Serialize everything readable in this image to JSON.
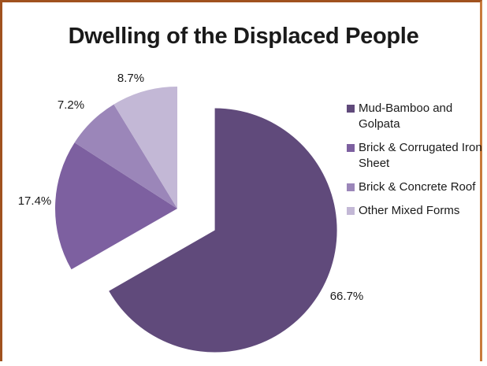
{
  "chart_data": {
    "type": "pie",
    "title": "Dwelling of the Displaced People",
    "categories": [
      "Mud-Bamboo and Golpata",
      "Brick & Corrugated Iron Sheet",
      "Brick & Concrete Roof",
      "Other Mixed Forms"
    ],
    "values": [
      66.7,
      17.4,
      7.2,
      8.7
    ],
    "data_labels": [
      "66.7%",
      "17.4%",
      "7.2%",
      "8.7%"
    ],
    "colors": [
      "#604a7b",
      "#7d60a0",
      "#9b86b9",
      "#c3b8d6"
    ],
    "exploded_slice": "Mud-Bamboo and Golpata",
    "legend_position": "right"
  }
}
